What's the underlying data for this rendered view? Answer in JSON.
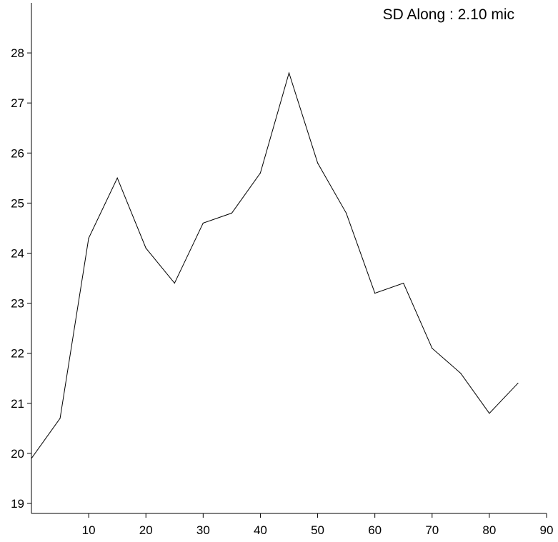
{
  "chart_data": {
    "type": "line",
    "annotation": "SD Along :   2.10 mic",
    "x": [
      0,
      5,
      10,
      15,
      20,
      25,
      30,
      35,
      40,
      45,
      50,
      55,
      60,
      65,
      70,
      75,
      80,
      85
    ],
    "series": [
      {
        "values": [
          19.9,
          20.7,
          24.3,
          25.5,
          24.1,
          23.4,
          24.6,
          24.8,
          25.6,
          27.6,
          25.8,
          24.8,
          23.2,
          23.4,
          22.1,
          21.6,
          20.8,
          21.4
        ]
      }
    ],
    "xlim": [
      0,
      90
    ],
    "ylim": [
      18.8,
      29.0
    ],
    "xticks": [
      "10",
      "20",
      "30",
      "40",
      "50",
      "60",
      "70",
      "80",
      "90"
    ],
    "yticks": [
      "19",
      "20",
      "21",
      "22",
      "23",
      "24",
      "25",
      "26",
      "27",
      "28"
    ],
    "grid": false,
    "line_color": "#000000"
  }
}
